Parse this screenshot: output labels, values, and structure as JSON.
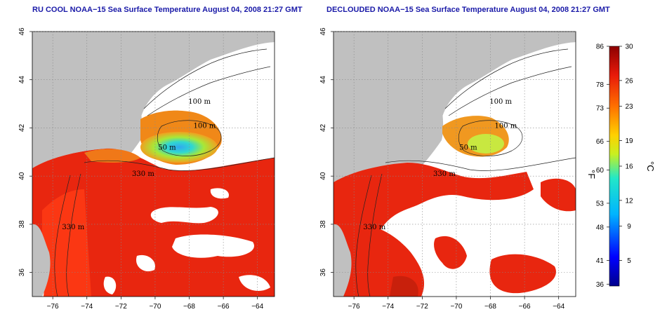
{
  "panels": [
    {
      "id": "left",
      "title": "RU COOL NOAA−15 Sea Surface Temperature August 04, 2008 21:27 GMT"
    },
    {
      "id": "right",
      "title": "DECLOUDED NOAA−15 Sea Surface Temperature August 04, 2008 21:27 GMT"
    }
  ],
  "map_axes": {
    "lon_range": [
      -77.2,
      -63.0
    ],
    "lat_range": [
      35.0,
      46.0
    ],
    "lon_ticks": [
      "−76",
      "−74",
      "−72",
      "−70",
      "−68",
      "−66",
      "−64"
    ],
    "lon_tick_values": [
      -76,
      -74,
      -72,
      -70,
      -68,
      -66,
      -64
    ],
    "lat_ticks": [
      "36",
      "38",
      "40",
      "42",
      "44",
      "46"
    ],
    "lat_tick_values": [
      36,
      38,
      40,
      42,
      44,
      46
    ],
    "grid": "dotted"
  },
  "contour_labels": [
    {
      "text": "100 m",
      "lon": -67.4,
      "lat": 43.0
    },
    {
      "text": "100 m",
      "lon": -67.1,
      "lat": 42.0
    },
    {
      "text": "50 m",
      "lon": -69.3,
      "lat": 41.1
    },
    {
      "text": "330 m",
      "lon": -70.7,
      "lat": 40.0
    },
    {
      "text": "330 m",
      "lon": -74.8,
      "lat": 37.8
    }
  ],
  "colorbar": {
    "fahrenheit_label": "°F",
    "celsius_label": "°C",
    "fahrenheit_ticks": [
      "86",
      "78",
      "73",
      "66",
      "60",
      "53",
      "48",
      "41",
      "36"
    ],
    "celsius_ticks": [
      "30",
      "26",
      "23",
      "19",
      "16",
      "12",
      "9",
      "5"
    ],
    "celsius_range": [
      2,
      30
    ],
    "celsius_tick_values": [
      30,
      26,
      23,
      19,
      16,
      12,
      9,
      5
    ],
    "fahrenheit_tick_values": [
      86,
      78,
      73,
      66,
      60,
      53,
      48,
      41,
      36
    ]
  },
  "colors": {
    "land": "#c0c0c0",
    "cloud": "#ffffff",
    "title": "#1a1aa8",
    "warm": "#e8260f",
    "cold": "#3cc8e8"
  }
}
